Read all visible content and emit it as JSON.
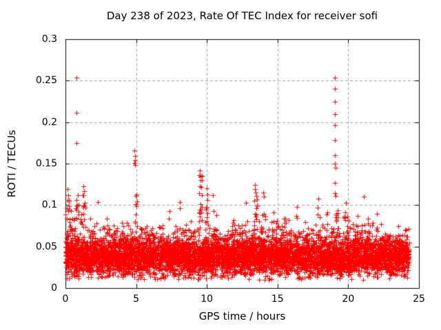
{
  "chart_data": {
    "type": "scatter",
    "title": "Day 238 of 2023, Rate Of TEC Index for receiver sofi",
    "xlabel": "GPS time / hours",
    "ylabel": "ROTI / TECUs",
    "xlim": [
      0,
      25
    ],
    "ylim": [
      0,
      0.3
    ],
    "x_ticks": [
      0,
      5,
      10,
      15,
      20,
      25
    ],
    "x_tick_labels": [
      "0",
      "5",
      "10",
      "15",
      "20",
      "25"
    ],
    "y_ticks": [
      0,
      0.05,
      0.1,
      0.15,
      0.2,
      0.25,
      0.3
    ],
    "y_tick_labels": [
      "0",
      "0.05",
      "0.1",
      "0.15",
      "0.2",
      "0.25",
      "0.3"
    ],
    "grid": true,
    "legend": false,
    "marker": {
      "shape": "plus",
      "color": "#ff0000",
      "size": 7
    },
    "style": {
      "grid_color": "#a0a0a0",
      "axis_color": "#000000",
      "background": "#ffffff",
      "grid_dash": [
        4,
        3
      ],
      "tick_length": 6
    },
    "summary": "Dense scatter (one red + per ROTI sample) forming a band between ~0.02 and ~0.09 TECU across 0-24.3 h, with outlier spikes near 0.8 h (up to 0.254), 4.9 h (~0.166), 9.5 h (~0.142), 10.0 h (~0.120), 13.4 h (~0.124), 14.0 h (~0.115) and an isolated vertical column of points at ~19.05 h reaching 0.254.",
    "outlier_points_x_y": [
      [
        0.78,
        0.254
      ],
      [
        0.8,
        0.211
      ],
      [
        0.77,
        0.175
      ],
      [
        0.15,
        0.119
      ],
      [
        0.19,
        0.112
      ],
      [
        1.25,
        0.123
      ],
      [
        1.3,
        0.117
      ],
      [
        2.3,
        0.104
      ],
      [
        4.86,
        0.166
      ],
      [
        4.9,
        0.159
      ],
      [
        4.93,
        0.154
      ],
      [
        4.85,
        0.151
      ],
      [
        4.9,
        0.148
      ],
      [
        8.1,
        0.104
      ],
      [
        9.5,
        0.142
      ],
      [
        9.46,
        0.136
      ],
      [
        9.53,
        0.13
      ],
      [
        9.97,
        0.12
      ],
      [
        10.05,
        0.113
      ],
      [
        10.45,
        0.112
      ],
      [
        12.78,
        0.103
      ],
      [
        13.4,
        0.124
      ],
      [
        13.38,
        0.119
      ],
      [
        13.45,
        0.115
      ],
      [
        13.5,
        0.111
      ],
      [
        13.98,
        0.115
      ],
      [
        14.02,
        0.11
      ],
      [
        17.9,
        0.108
      ],
      [
        19.05,
        0.254
      ],
      [
        19.05,
        0.24
      ],
      [
        19.06,
        0.225
      ],
      [
        19.05,
        0.21
      ],
      [
        19.04,
        0.196
      ],
      [
        19.05,
        0.178
      ],
      [
        19.05,
        0.16
      ],
      [
        19.06,
        0.15
      ],
      [
        19.08,
        0.145
      ],
      [
        19.05,
        0.127
      ],
      [
        19.04,
        0.114
      ],
      [
        19.09,
        0.111
      ],
      [
        21.1,
        0.11
      ]
    ],
    "spike_columns": [
      {
        "x": 0.2,
        "x_jitter": 0.1,
        "y_min": 0.078,
        "y_max": 0.112,
        "n": 7
      },
      {
        "x": 0.85,
        "x_jitter": 0.15,
        "y_min": 0.078,
        "y_max": 0.115,
        "n": 10
      },
      {
        "x": 1.3,
        "x_jitter": 0.12,
        "y_min": 0.078,
        "y_max": 0.112,
        "n": 8
      },
      {
        "x": 5.0,
        "x_jitter": 0.1,
        "y_min": 0.078,
        "y_max": 0.118,
        "n": 6
      },
      {
        "x": 9.55,
        "x_jitter": 0.1,
        "y_min": 0.08,
        "y_max": 0.138,
        "n": 14
      },
      {
        "x": 9.98,
        "x_jitter": 0.08,
        "y_min": 0.078,
        "y_max": 0.112,
        "n": 8
      },
      {
        "x": 13.45,
        "x_jitter": 0.12,
        "y_min": 0.078,
        "y_max": 0.112,
        "n": 8
      },
      {
        "x": 19.15,
        "x_jitter": 0.12,
        "y_min": 0.08,
        "y_max": 0.103,
        "n": 10
      }
    ],
    "envelope_peaks_x_max_w": [
      [
        0.15,
        0.115,
        0.12
      ],
      [
        0.5,
        0.098,
        0.15
      ],
      [
        0.85,
        0.1,
        0.15
      ],
      [
        1.25,
        0.12,
        0.18
      ],
      [
        1.7,
        0.098,
        0.15
      ],
      [
        2.3,
        0.103,
        0.15
      ],
      [
        3.2,
        0.092,
        0.25
      ],
      [
        4.0,
        0.094,
        0.2
      ],
      [
        4.9,
        0.105,
        0.15
      ],
      [
        5.7,
        0.092,
        0.2
      ],
      [
        6.5,
        0.094,
        0.2
      ],
      [
        7.3,
        0.099,
        0.18
      ],
      [
        8.1,
        0.103,
        0.18
      ],
      [
        8.8,
        0.092,
        0.15
      ],
      [
        9.5,
        0.135,
        0.12
      ],
      [
        10.0,
        0.115,
        0.15
      ],
      [
        10.45,
        0.112,
        0.15
      ],
      [
        11.2,
        0.094,
        0.2
      ],
      [
        12.1,
        0.086,
        0.25
      ],
      [
        12.8,
        0.1,
        0.15
      ],
      [
        13.45,
        0.118,
        0.15
      ],
      [
        14.0,
        0.11,
        0.12
      ],
      [
        14.8,
        0.094,
        0.2
      ],
      [
        15.6,
        0.099,
        0.18
      ],
      [
        16.4,
        0.103,
        0.18
      ],
      [
        17.1,
        0.098,
        0.15
      ],
      [
        17.9,
        0.108,
        0.15
      ],
      [
        18.6,
        0.099,
        0.15
      ],
      [
        19.15,
        0.103,
        0.15
      ],
      [
        19.9,
        0.107,
        0.15
      ],
      [
        20.6,
        0.103,
        0.15
      ],
      [
        21.2,
        0.108,
        0.18
      ],
      [
        22.0,
        0.094,
        0.2
      ],
      [
        22.8,
        0.099,
        0.15
      ],
      [
        23.4,
        0.094,
        0.18
      ],
      [
        24.05,
        0.082,
        0.15
      ]
    ],
    "generator": {
      "seed": 987654321,
      "n_points": 6500,
      "x_min": 0.0,
      "x_max": 24.3,
      "core_center": 0.037,
      "core_sigma": 0.011,
      "y_floor": 0.01,
      "tail_prob": 0.3,
      "tail_scale": 0.012,
      "base_envelope": 0.075
    }
  }
}
